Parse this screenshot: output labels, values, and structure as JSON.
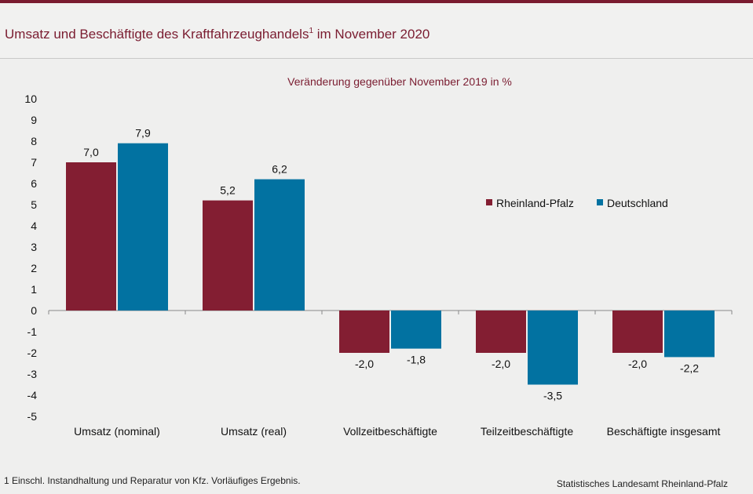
{
  "header": {
    "title": "Umsatz und Beschäftigte des Kraftfahrzeughandels",
    "title_footnote_marker": "1",
    "title_suffix": "im November 2020"
  },
  "colors": {
    "brand": "#7a1c30",
    "series_rp": "#831e32",
    "series_de": "#0272a1"
  },
  "chart_data": {
    "type": "bar",
    "subtitle": "Veränderung gegenüber November 2019 in %",
    "categories": [
      "Umsatz (nominal)",
      "Umsatz (real)",
      "Vollzeitbeschäftigte",
      "Teilzeitbeschäftigte",
      "Beschäftigte insgesamt"
    ],
    "series": [
      {
        "name": "Rheinland-Pfalz",
        "values": [
          7.0,
          5.2,
          -2.0,
          -2.0,
          -2.0
        ],
        "labels": [
          "7,0",
          "5,2",
          "-2,0",
          "-2,0",
          "-2,0"
        ]
      },
      {
        "name": "Deutschland",
        "values": [
          7.9,
          6.2,
          -1.8,
          -3.5,
          -2.2
        ],
        "labels": [
          "7,9",
          "6,2",
          "-1,8",
          "-3,5",
          "-2,2"
        ]
      }
    ],
    "ylim": [
      -5,
      10
    ],
    "yticks": [
      10,
      9,
      8,
      7,
      6,
      5,
      4,
      3,
      2,
      1,
      0,
      -1,
      -2,
      -3,
      -4,
      -5
    ],
    "legend_position": "right"
  },
  "footer": {
    "footnote": "1 Einschl. Instandhaltung und Reparatur von Kfz. Vorläufiges Ergebnis.",
    "source": "Statistisches Landesamt Rheinland-Pfalz"
  }
}
